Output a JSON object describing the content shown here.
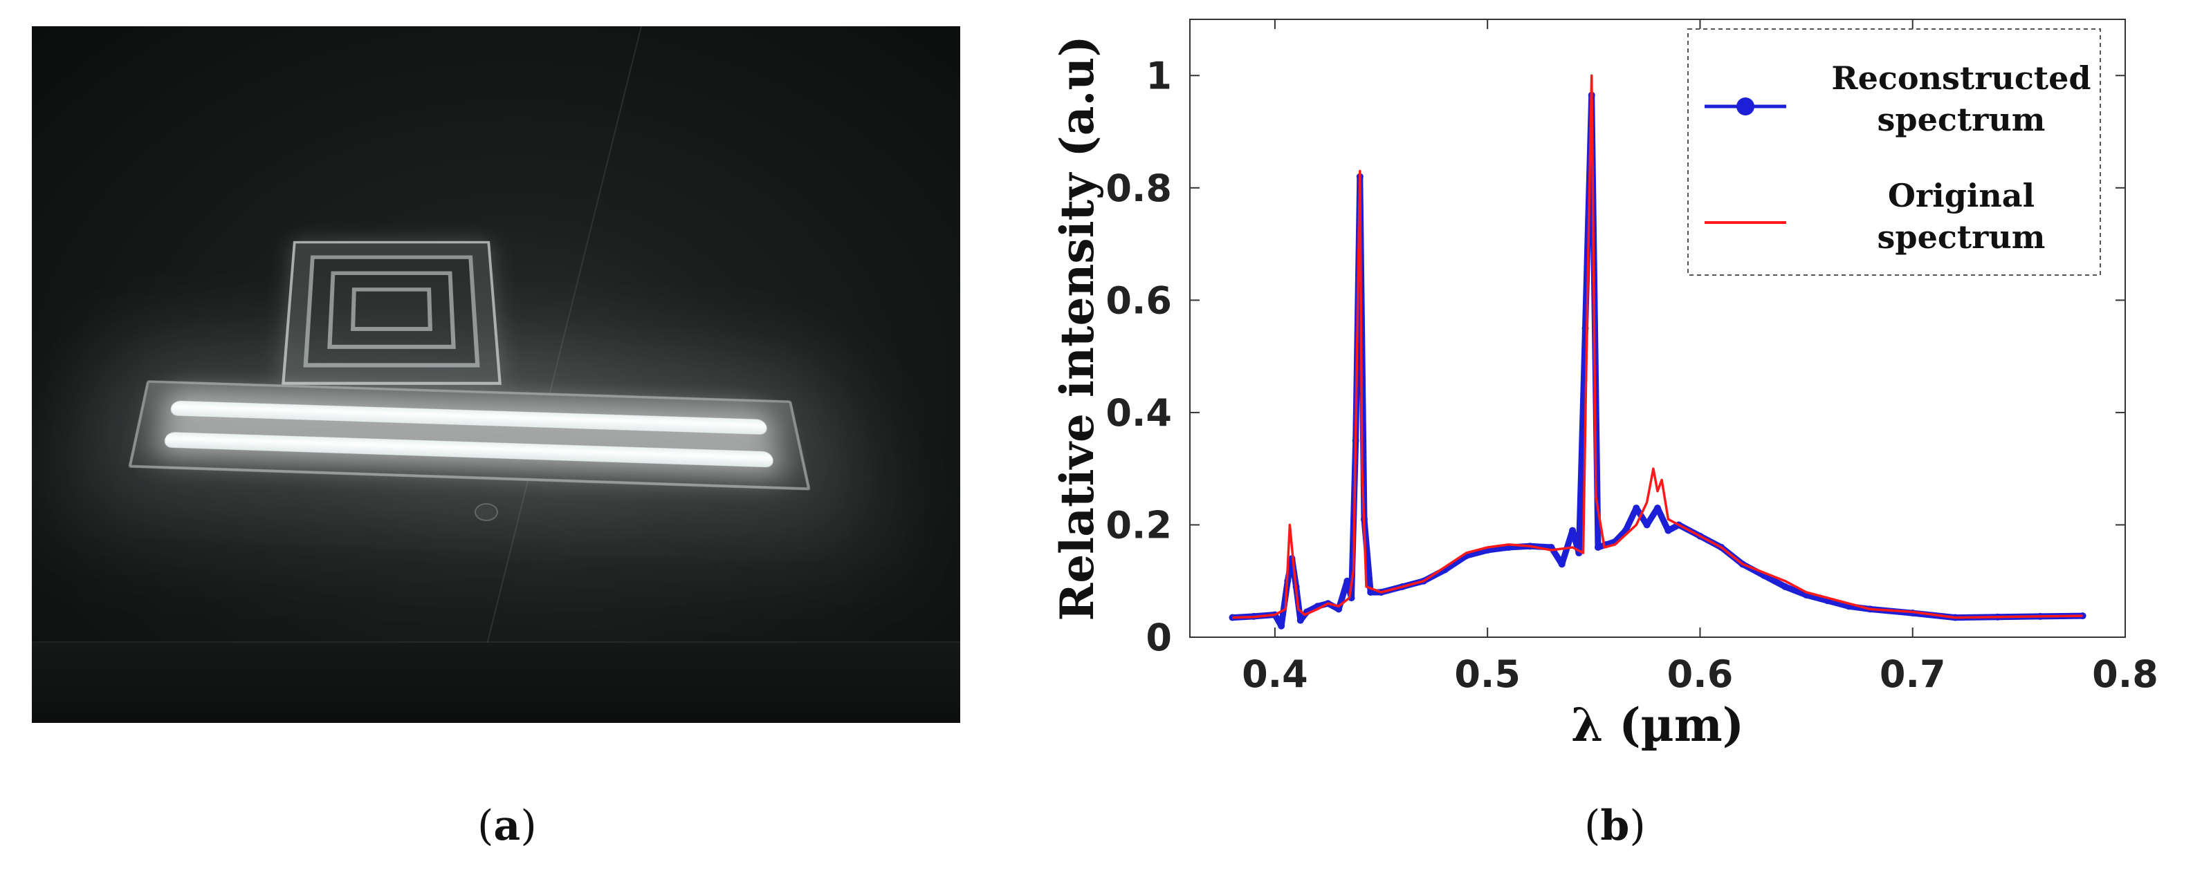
{
  "panels": {
    "a": {
      "label": "(a)",
      "letter": "a"
    },
    "b": {
      "label": "(b)",
      "letter": "b"
    }
  },
  "colors": {
    "reconstructed": "#1c1fd6",
    "original": "#ff1a1a",
    "axis": "#333333"
  },
  "chart_data": {
    "type": "line",
    "xlabel": "λ (µm)",
    "ylabel": "Relative intensity (a.u)",
    "xlim": [
      0.36,
      0.8
    ],
    "ylim": [
      0,
      1.1
    ],
    "xticks": [
      0.4,
      0.5,
      0.6,
      0.7,
      0.8
    ],
    "xtick_labels": [
      "0.4",
      "0.5",
      "0.6",
      "0.7",
      "0.8"
    ],
    "yticks": [
      0,
      0.2,
      0.4,
      0.6,
      0.8,
      1
    ],
    "ytick_labels": [
      "0",
      "0.2",
      "0.4",
      "0.6",
      "0.8",
      "1"
    ],
    "grid": false,
    "legend_position": "top-right",
    "series": [
      {
        "name": "Reconstructed spectrum",
        "legend_lines": [
          "Reconstructed",
          "spectrum"
        ],
        "marker": "circle",
        "x": [
          0.38,
          0.39,
          0.4,
          0.403,
          0.406,
          0.408,
          0.41,
          0.412,
          0.415,
          0.42,
          0.425,
          0.43,
          0.434,
          0.436,
          0.438,
          0.44,
          0.442,
          0.445,
          0.45,
          0.46,
          0.47,
          0.48,
          0.49,
          0.5,
          0.51,
          0.52,
          0.53,
          0.535,
          0.54,
          0.543,
          0.546,
          0.549,
          0.552,
          0.556,
          0.56,
          0.565,
          0.57,
          0.575,
          0.58,
          0.585,
          0.59,
          0.6,
          0.61,
          0.62,
          0.63,
          0.64,
          0.65,
          0.66,
          0.67,
          0.68,
          0.7,
          0.72,
          0.74,
          0.76,
          0.78
        ],
        "y": [
          0.035,
          0.037,
          0.04,
          0.02,
          0.1,
          0.14,
          0.09,
          0.03,
          0.045,
          0.055,
          0.06,
          0.05,
          0.1,
          0.07,
          0.35,
          0.82,
          0.21,
          0.08,
          0.08,
          0.09,
          0.1,
          0.12,
          0.145,
          0.155,
          0.16,
          0.162,
          0.16,
          0.13,
          0.19,
          0.15,
          0.55,
          0.965,
          0.16,
          0.165,
          0.17,
          0.19,
          0.23,
          0.2,
          0.23,
          0.19,
          0.2,
          0.18,
          0.16,
          0.13,
          0.11,
          0.09,
          0.075,
          0.065,
          0.055,
          0.05,
          0.043,
          0.035,
          0.036,
          0.037,
          0.038
        ]
      },
      {
        "name": "Original spectrum",
        "legend_lines": [
          "Original",
          "spectrum"
        ],
        "marker": "none",
        "x": [
          0.38,
          0.39,
          0.4,
          0.405,
          0.407,
          0.409,
          0.411,
          0.414,
          0.42,
          0.425,
          0.43,
          0.435,
          0.437,
          0.439,
          0.44,
          0.441,
          0.443,
          0.45,
          0.46,
          0.47,
          0.48,
          0.49,
          0.5,
          0.51,
          0.52,
          0.53,
          0.54,
          0.545,
          0.547,
          0.549,
          0.551,
          0.555,
          0.56,
          0.57,
          0.575,
          0.578,
          0.58,
          0.582,
          0.585,
          0.59,
          0.6,
          0.61,
          0.62,
          0.63,
          0.64,
          0.65,
          0.66,
          0.67,
          0.68,
          0.7,
          0.72,
          0.74,
          0.76,
          0.78
        ],
        "y": [
          0.035,
          0.036,
          0.04,
          0.05,
          0.2,
          0.12,
          0.05,
          0.04,
          0.05,
          0.06,
          0.055,
          0.07,
          0.12,
          0.6,
          0.83,
          0.3,
          0.09,
          0.08,
          0.09,
          0.1,
          0.125,
          0.15,
          0.16,
          0.165,
          0.162,
          0.155,
          0.16,
          0.15,
          0.6,
          1.0,
          0.25,
          0.16,
          0.165,
          0.2,
          0.24,
          0.3,
          0.26,
          0.28,
          0.21,
          0.2,
          0.18,
          0.16,
          0.13,
          0.115,
          0.1,
          0.08,
          0.07,
          0.06,
          0.05,
          0.045,
          0.035,
          0.036,
          0.037,
          0.038
        ]
      }
    ]
  }
}
